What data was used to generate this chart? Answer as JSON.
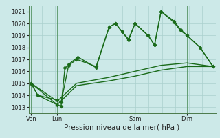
{
  "xlabel": "Pression niveau de la mer( hPa )",
  "ylim": [
    1012.5,
    1021.5
  ],
  "yticks": [
    1013,
    1014,
    1015,
    1016,
    1017,
    1018,
    1019,
    1020,
    1021
  ],
  "background_color": "#cce9e8",
  "grid_color": "#aad0ce",
  "line_color": "#1a6b1a",
  "xtick_labels": [
    "Ven",
    "Lun",
    "Sam",
    "Dim"
  ],
  "xtick_positions": [
    0,
    2,
    8,
    12
  ],
  "xlim": [
    -0.2,
    14.2
  ],
  "series": [
    {
      "x": [
        0,
        0.5,
        2,
        2.3,
        2.6,
        2.9,
        3.5,
        5.0,
        6.0,
        6.5,
        7.0,
        7.5,
        8.0,
        9.0,
        9.5,
        10.0,
        11.0,
        11.5,
        12.0,
        13.0,
        14.0
      ],
      "y": [
        1015.0,
        1014.0,
        1013.2,
        1013.1,
        1016.3,
        1016.5,
        1017.0,
        1016.4,
        1019.7,
        1020.0,
        1019.3,
        1018.6,
        1020.0,
        1019.0,
        1018.2,
        1021.0,
        1020.2,
        1019.5,
        1019.0,
        1018.0,
        1016.4
      ],
      "marker": "D",
      "markersize": 2.5
    },
    {
      "x": [
        0,
        0.5,
        2,
        2.3,
        2.9,
        3.6,
        5.0,
        6.0,
        6.5,
        7.0,
        7.5,
        8.0,
        9.0,
        9.5,
        10.0,
        11.0,
        11.5,
        12.0,
        13.0,
        14.0
      ],
      "y": [
        1015.0,
        1014.0,
        1013.6,
        1013.4,
        1016.6,
        1017.2,
        1016.3,
        1019.7,
        1020.0,
        1019.3,
        1018.7,
        1020.0,
        1019.0,
        1018.2,
        1021.0,
        1020.1,
        1019.4,
        1019.0,
        1018.0,
        1016.4
      ],
      "marker": "D",
      "markersize": 2.5
    },
    {
      "x": [
        0,
        2,
        3.5,
        6.0,
        8.0,
        10.0,
        12.0,
        14.0
      ],
      "y": [
        1015.0,
        1013.5,
        1015.0,
        1015.5,
        1016.0,
        1016.5,
        1016.7,
        1016.4
      ],
      "marker": null,
      "markersize": 0
    },
    {
      "x": [
        0,
        2,
        3.5,
        6.0,
        8.0,
        10.0,
        12.0,
        14.0
      ],
      "y": [
        1015.0,
        1013.2,
        1014.8,
        1015.2,
        1015.6,
        1016.1,
        1016.4,
        1016.4
      ],
      "marker": null,
      "markersize": 0
    }
  ],
  "vlines": [
    0,
    2,
    8,
    12
  ],
  "linewidth": 1.0,
  "font_size_tick": 6,
  "font_size_xlabel": 7.5
}
